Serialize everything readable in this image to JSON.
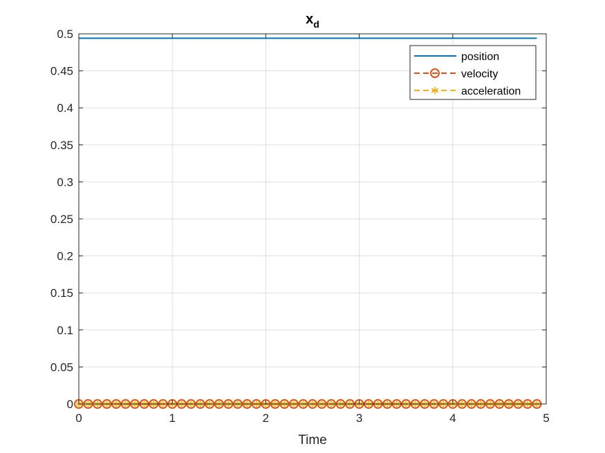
{
  "chart_data": {
    "type": "line",
    "title": "x",
    "title_subscript": "d",
    "xlabel": "Time",
    "ylabel": "",
    "xlim": [
      0,
      5
    ],
    "ylim": [
      0,
      0.5
    ],
    "grid": true,
    "legend_position": "top-right",
    "xticks": [
      "0",
      "1",
      "2",
      "3",
      "4",
      "5"
    ],
    "yticks": [
      "0",
      "0.05",
      "0.1",
      "0.15",
      "0.2",
      "0.25",
      "0.3",
      "0.35",
      "0.4",
      "0.45",
      "0.5"
    ],
    "x_range": {
      "start": 0,
      "end": 4.9,
      "step": 0.1
    },
    "series": [
      {
        "name": "position",
        "constant": 0.494,
        "color": "#0072BD",
        "style": "solid",
        "marker": "none"
      },
      {
        "name": "velocity",
        "constant": 0,
        "color": "#D95319",
        "style": "dashed",
        "marker": "circle"
      },
      {
        "name": "acceleration",
        "constant": 0,
        "color": "#EDB120",
        "style": "dashed",
        "marker": "asterisk"
      }
    ]
  }
}
